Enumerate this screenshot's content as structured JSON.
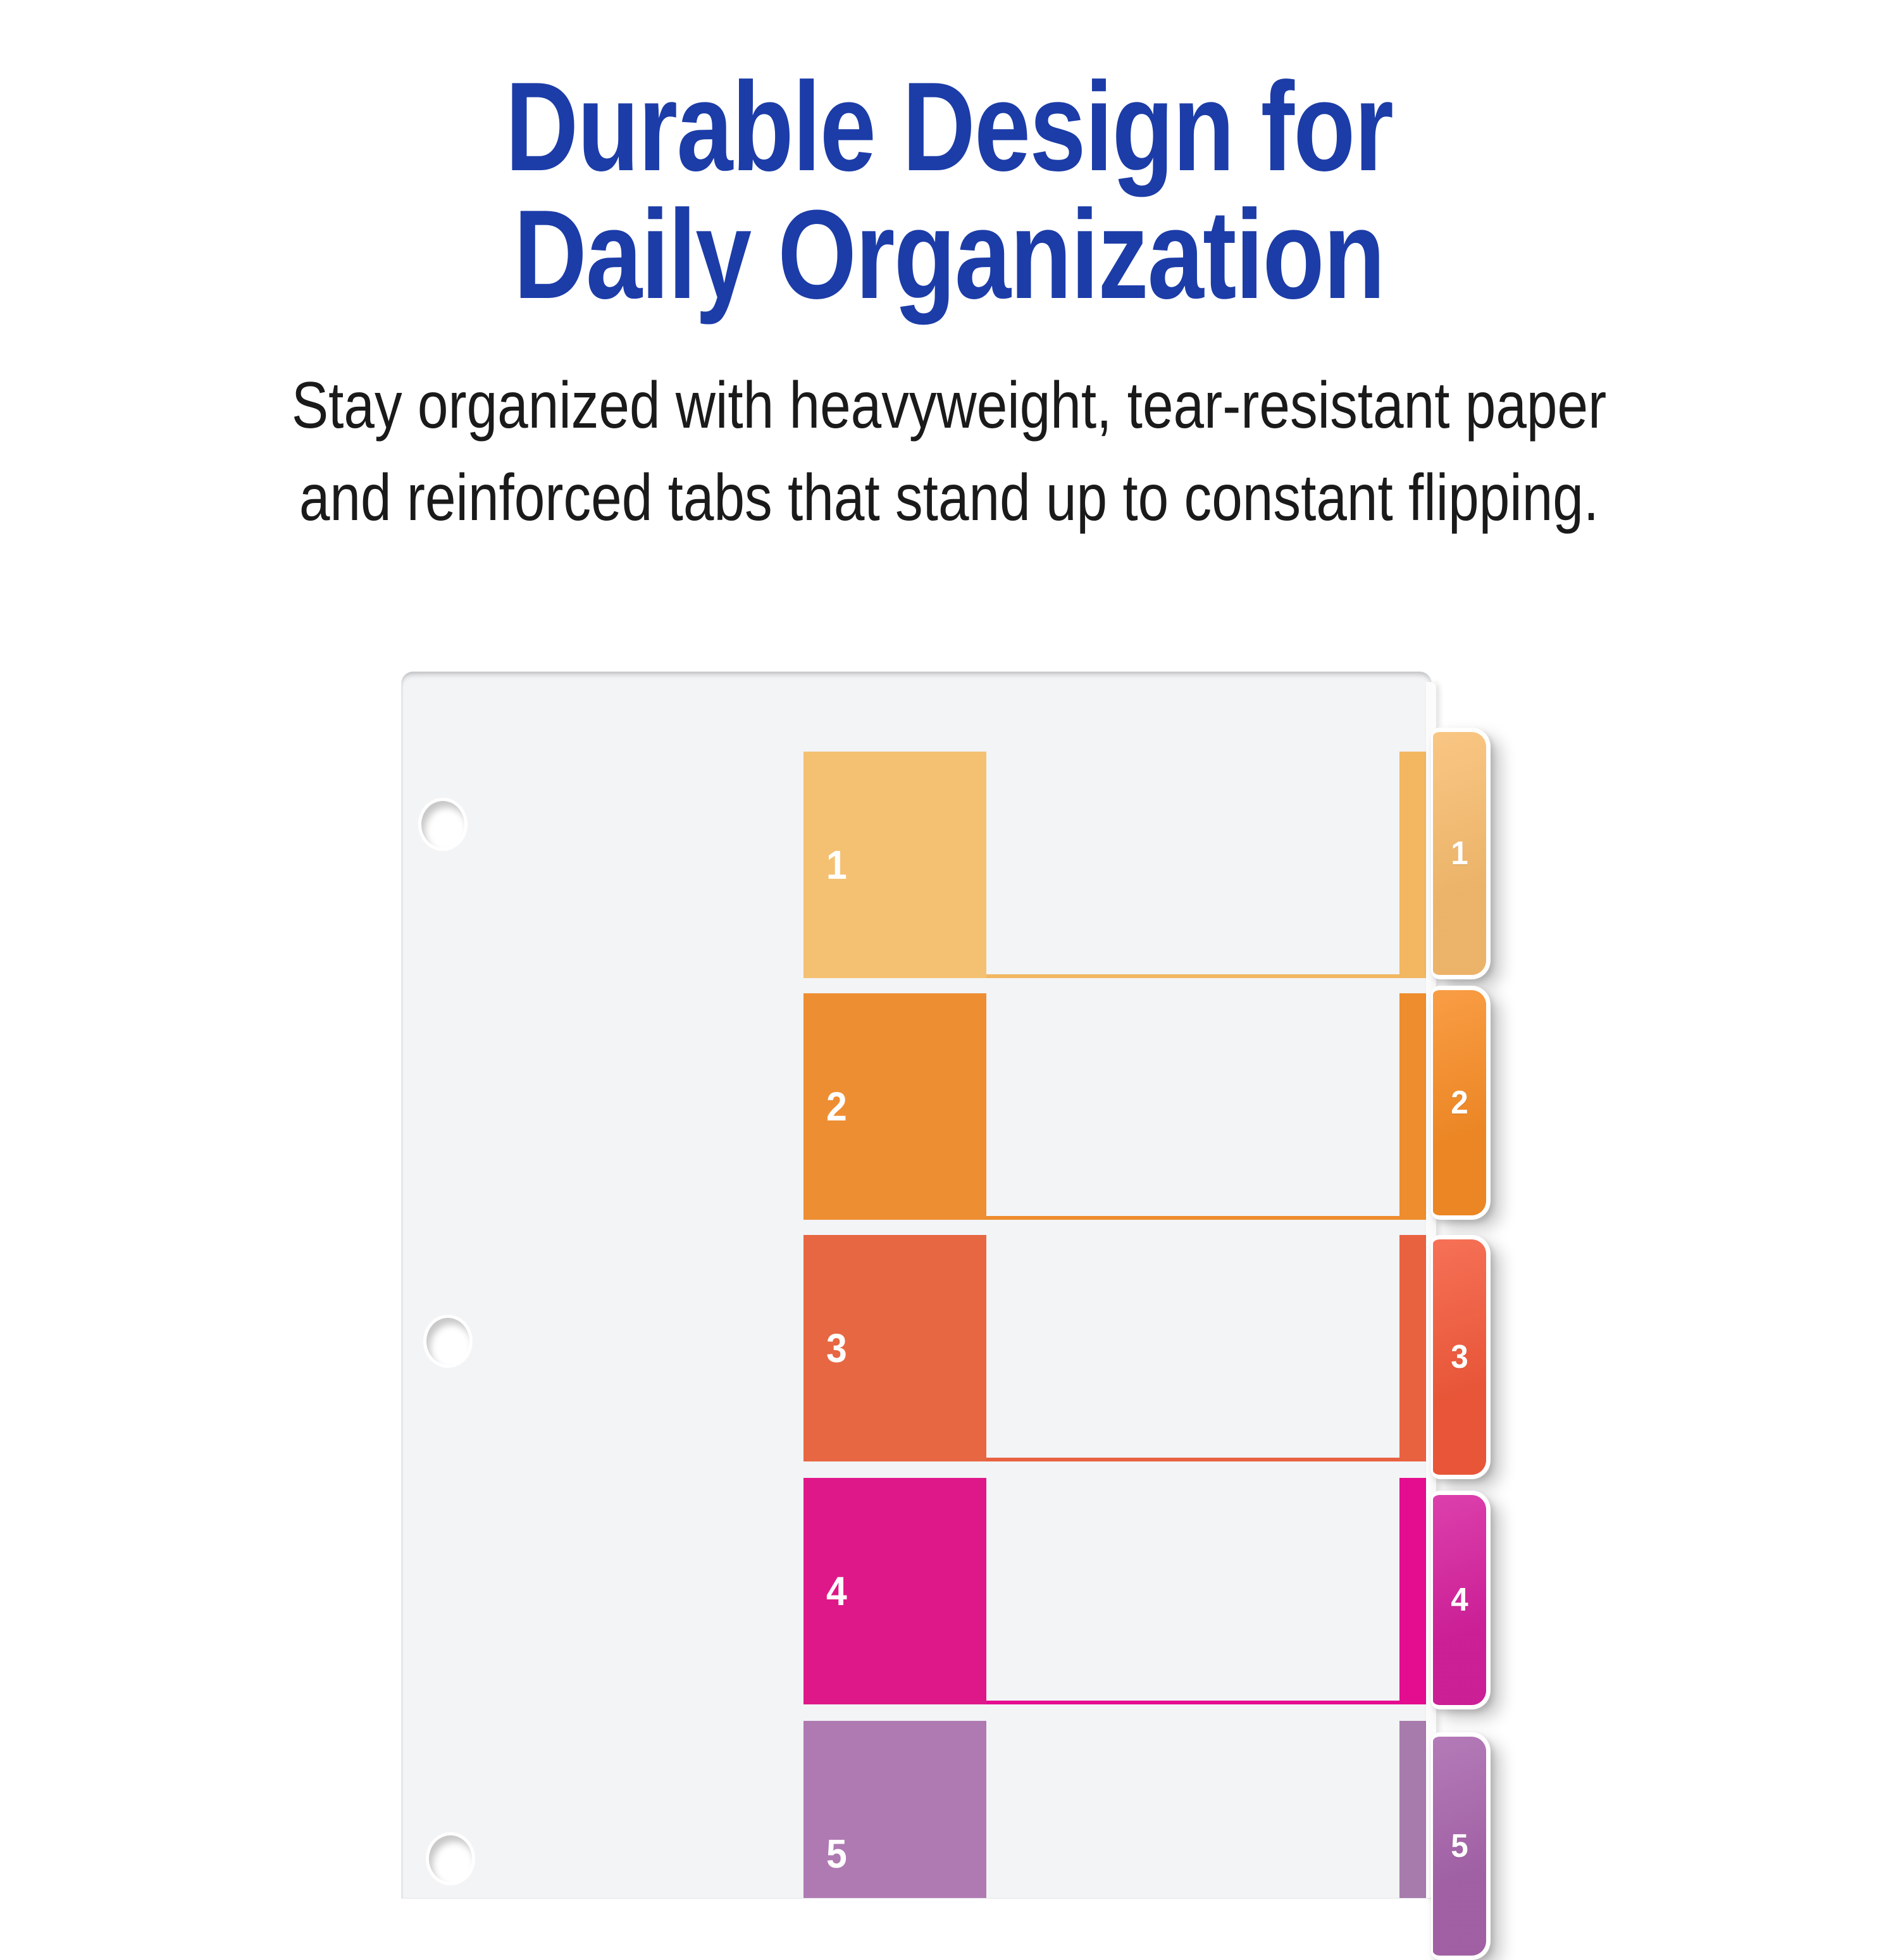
{
  "headline": {
    "line1": "Durable Design for",
    "line2": "Daily Organization",
    "color": "#1C3CA8"
  },
  "subtitle": {
    "line1": "Stay organized with heavyweight, tear-resistant paper",
    "line2": "and reinforced tabs that stand up to constant flipping.",
    "color": "#1A1A1A"
  },
  "divider": {
    "type": "numbered-tab-divider-sheet",
    "paper_color": "#F3F4F6",
    "hole_count": 3,
    "sections": [
      {
        "label": "1",
        "block_color": "#F4C173",
        "strip_color": "#F2B760",
        "tab_color": "#F8BD6F"
      },
      {
        "label": "2",
        "block_color": "#EE8E33",
        "strip_color": "#EE8D2D",
        "tab_color": "#F88D26"
      },
      {
        "label": "3",
        "block_color": "#E76742",
        "strip_color": "#E96240",
        "tab_color": "#F45A3B"
      },
      {
        "label": "4",
        "block_color": "#DF1889",
        "strip_color": "#E50D8F",
        "tab_color": "#D6219E"
      },
      {
        "label": "5",
        "block_color": "#AF7AB2",
        "strip_color": "#A77BAB",
        "tab_color": "#A865AC"
      }
    ]
  }
}
